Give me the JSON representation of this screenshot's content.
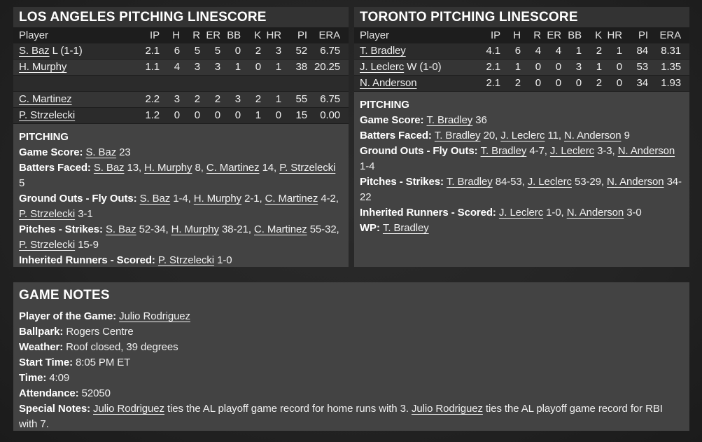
{
  "colors": {
    "page_bg": "#242424",
    "panel_bg": "#434343",
    "titlebar_bg": "#333333",
    "header_row_bg": "#1d1d1d",
    "row_dark": "#2b2b2b",
    "row_light": "#353535",
    "text_main": "#f0f0f0",
    "text_title": "#ffffff"
  },
  "away": {
    "title": "LOS ANGELES PITCHING LINESCORE",
    "pitching_header": "PITCHING",
    "table": {
      "columns": [
        "Player",
        "IP",
        "H",
        "R",
        "ER",
        "BB",
        "K",
        "HR",
        "PI",
        "ERA"
      ],
      "rows": [
        {
          "name": "S. Baz",
          "suffix": " L (1-1)",
          "stats": [
            "2.1",
            "6",
            "5",
            "5",
            "0",
            "2",
            "3",
            "52",
            "6.75"
          ]
        },
        {
          "name": "H. Murphy",
          "suffix": "",
          "stats": [
            "1.1",
            "4",
            "3",
            "3",
            "1",
            "0",
            "1",
            "38",
            "20.25"
          ]
        },
        {
          "name": "",
          "suffix": "",
          "stats": [
            "",
            "",
            "",
            "",
            "",
            "",
            "",
            "",
            ""
          ]
        },
        {
          "name": "C. Martinez",
          "suffix": "",
          "stats": [
            "2.2",
            "3",
            "2",
            "2",
            "3",
            "2",
            "1",
            "55",
            "6.75"
          ]
        },
        {
          "name": "P. Strzelecki",
          "suffix": "",
          "stats": [
            "1.2",
            "0",
            "0",
            "0",
            "0",
            "1",
            "0",
            "15",
            "0.00"
          ]
        }
      ]
    },
    "pitching_lines": [
      {
        "label": "Game Score:",
        "segments": [
          {
            "t": "S. Baz",
            "link": true
          },
          {
            "t": " 23"
          }
        ]
      },
      {
        "label": "Batters Faced:",
        "segments": [
          {
            "t": "S. Baz",
            "link": true
          },
          {
            "t": " 13, "
          },
          {
            "t": "H. Murphy",
            "link": true
          },
          {
            "t": " 8, "
          },
          {
            "t": "C. Martinez",
            "link": true
          },
          {
            "t": " 14, "
          },
          {
            "t": "P. Strzelecki",
            "link": true
          },
          {
            "t": " 5"
          }
        ]
      },
      {
        "label": "Ground Outs - Fly Outs:",
        "segments": [
          {
            "t": "S. Baz",
            "link": true
          },
          {
            "t": " 1-4, "
          },
          {
            "t": "H. Murphy",
            "link": true
          },
          {
            "t": " 2-1, "
          },
          {
            "t": "C. Martinez",
            "link": true
          },
          {
            "t": " 4-2, "
          },
          {
            "t": "P. Strzelecki",
            "link": true
          },
          {
            "t": " 3-1"
          }
        ]
      },
      {
        "label": "Pitches - Strikes:",
        "segments": [
          {
            "t": "S. Baz",
            "link": true
          },
          {
            "t": " 52-34, "
          },
          {
            "t": "H. Murphy",
            "link": true
          },
          {
            "t": " 38-21, "
          },
          {
            "t": "C. Martinez",
            "link": true
          },
          {
            "t": " 55-32, "
          },
          {
            "t": "P. Strzelecki",
            "link": true
          },
          {
            "t": " 15-9"
          }
        ]
      },
      {
        "label": "Inherited Runners - Scored:",
        "segments": [
          {
            "t": "P. Strzelecki",
            "link": true
          },
          {
            "t": " 1-0"
          }
        ]
      }
    ]
  },
  "home": {
    "title": "TORONTO PITCHING LINESCORE",
    "pitching_header": "PITCHING",
    "table": {
      "columns": [
        "Player",
        "IP",
        "H",
        "R",
        "ER",
        "BB",
        "K",
        "HR",
        "PI",
        "ERA"
      ],
      "rows": [
        {
          "name": "T. Bradley",
          "suffix": "",
          "stats": [
            "4.1",
            "6",
            "4",
            "4",
            "1",
            "2",
            "1",
            "84",
            "8.31"
          ]
        },
        {
          "name": "J. Leclerc",
          "suffix": " W (1-0)",
          "stats": [
            "2.1",
            "1",
            "0",
            "0",
            "3",
            "1",
            "0",
            "53",
            "1.35"
          ]
        },
        {
          "name": "N. Anderson",
          "suffix": "",
          "stats": [
            "2.1",
            "2",
            "0",
            "0",
            "0",
            "2",
            "0",
            "34",
            "1.93"
          ]
        }
      ]
    },
    "pitching_lines": [
      {
        "label": "Game Score:",
        "segments": [
          {
            "t": "T. Bradley",
            "link": true
          },
          {
            "t": " 36"
          }
        ]
      },
      {
        "label": "Batters Faced:",
        "segments": [
          {
            "t": "T. Bradley",
            "link": true
          },
          {
            "t": " 20, "
          },
          {
            "t": "J. Leclerc",
            "link": true
          },
          {
            "t": " 11, "
          },
          {
            "t": "N. Anderson",
            "link": true
          },
          {
            "t": " 9"
          }
        ]
      },
      {
        "label": "Ground Outs - Fly Outs:",
        "segments": [
          {
            "t": "T. Bradley",
            "link": true
          },
          {
            "t": " 4-7, "
          },
          {
            "t": "J. Leclerc",
            "link": true
          },
          {
            "t": " 3-3, "
          },
          {
            "t": "N. Anderson",
            "link": true
          },
          {
            "t": " 1-4"
          }
        ]
      },
      {
        "label": "Pitches - Strikes:",
        "segments": [
          {
            "t": "T. Bradley",
            "link": true
          },
          {
            "t": " 84-53, "
          },
          {
            "t": "J. Leclerc",
            "link": true
          },
          {
            "t": " 53-29, "
          },
          {
            "t": "N. Anderson",
            "link": true
          },
          {
            "t": " 34-22"
          }
        ]
      },
      {
        "label": "Inherited Runners - Scored:",
        "segments": [
          {
            "t": "J. Leclerc",
            "link": true
          },
          {
            "t": " 1-0, "
          },
          {
            "t": "N. Anderson",
            "link": true
          },
          {
            "t": " 3-0"
          }
        ]
      },
      {
        "label": "WP:",
        "segments": [
          {
            "t": "T. Bradley",
            "link": true
          }
        ]
      }
    ]
  },
  "notes": {
    "title": "GAME NOTES",
    "lines": [
      {
        "label": "Player of the Game:",
        "segments": [
          {
            "t": "Julio Rodriguez",
            "link": true
          }
        ]
      },
      {
        "label": "Ballpark:",
        "segments": [
          {
            "t": "Rogers Centre"
          }
        ]
      },
      {
        "label": "Weather:",
        "segments": [
          {
            "t": "Roof closed, 39 degrees"
          }
        ]
      },
      {
        "label": "Start Time:",
        "segments": [
          {
            "t": "8:05 PM ET"
          }
        ]
      },
      {
        "label": "Time:",
        "segments": [
          {
            "t": "4:09"
          }
        ]
      },
      {
        "label": "Attendance:",
        "segments": [
          {
            "t": "52050"
          }
        ]
      },
      {
        "label": "Special Notes:",
        "segments": [
          {
            "t": "Julio Rodriguez",
            "link": true
          },
          {
            "t": " ties the AL playoff game record for home runs with 3. "
          },
          {
            "t": "Julio Rodriguez",
            "link": true
          },
          {
            "t": " ties the AL playoff game record for RBI with 7."
          }
        ]
      }
    ]
  }
}
